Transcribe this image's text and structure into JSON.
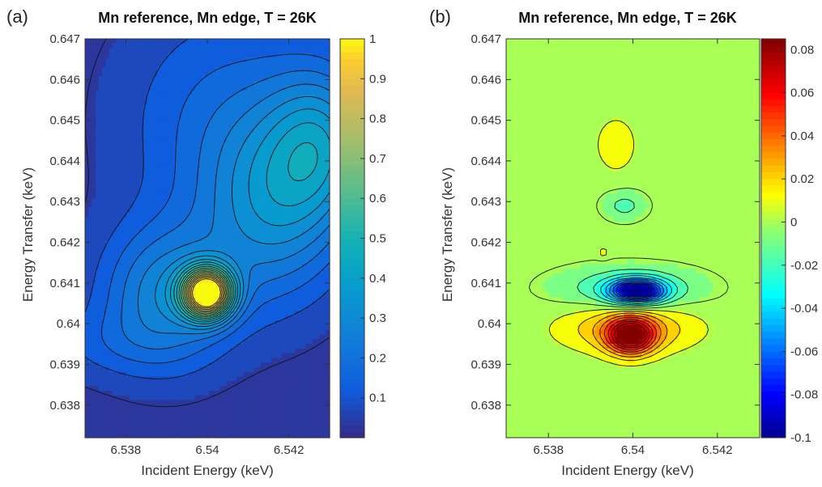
{
  "chart_data": [
    {
      "panel_label": "(a)",
      "type": "heatmap",
      "title": "Mn reference, Mn edge, T = 26K",
      "xlabel": "Incident Energy (keV)",
      "ylabel": "Energy Transfer (keV)",
      "xlim": [
        6.537,
        6.543
      ],
      "ylim": [
        0.6372,
        0.647
      ],
      "x_ticks": [
        "6.538",
        "6.54",
        "6.542"
      ],
      "y_ticks": [
        "0.638",
        "0.639",
        "0.64",
        "0.641",
        "0.642",
        "0.643",
        "0.644",
        "0.645",
        "0.646",
        "0.647"
      ],
      "colormap": "parula",
      "colorbar_range": [
        0,
        1
      ],
      "colorbar_ticks": [
        "0.1",
        "0.2",
        "0.3",
        "0.4",
        "0.5",
        "0.6",
        "0.7",
        "0.8",
        "0.9",
        "1"
      ],
      "background_value": 0.03,
      "features": [
        {
          "x": 6.54,
          "y": 0.64075,
          "amp": 0.98,
          "sx": 0.00042,
          "sy": 0.00042
        },
        {
          "x": 6.539,
          "y": 0.6407,
          "amp": 0.25,
          "sx": 0.0011,
          "sy": 0.0012
        },
        {
          "x": 6.5416,
          "y": 0.6428,
          "amp": 0.24,
          "sx": 0.0012,
          "sy": 0.0016
        },
        {
          "x": 6.5428,
          "y": 0.6444,
          "amp": 0.26,
          "sx": 0.0009,
          "sy": 0.0013
        },
        {
          "x": 6.5405,
          "y": 0.645,
          "amp": 0.13,
          "sx": 0.0018,
          "sy": 0.002
        },
        {
          "x": 6.5375,
          "y": 0.6395,
          "amp": 0.06,
          "sx": 0.0012,
          "sy": 0.0006
        }
      ]
    },
    {
      "panel_label": "(b)",
      "type": "heatmap",
      "title": "Mn reference, Mn edge, T = 26K",
      "xlabel": "Incident Energy (keV)",
      "ylabel": "Energy Transfer (keV)",
      "xlim": [
        6.537,
        6.543
      ],
      "ylim": [
        0.6372,
        0.647
      ],
      "x_ticks": [
        "6.538",
        "6.54",
        "6.542"
      ],
      "y_ticks": [
        "0.638",
        "0.639",
        "0.64",
        "0.641",
        "0.642",
        "0.643",
        "0.644",
        "0.645",
        "0.646",
        "0.647"
      ],
      "colormap": "jet",
      "colorbar_range": [
        -0.1,
        0.085
      ],
      "colorbar_ticks": [
        "0.08",
        "0.06",
        "0.04",
        "0.02",
        "0",
        "-0.02",
        "-0.04",
        "-0.06",
        "-0.08",
        "-0.1"
      ],
      "background_value": 0,
      "features": [
        {
          "x": 6.53995,
          "y": 0.6397,
          "amp": 0.082,
          "sx": 0.00038,
          "sy": 0.0003
        },
        {
          "x": 6.5399,
          "y": 0.6399,
          "amp": 0.03,
          "sx": 0.0011,
          "sy": 0.00042
        },
        {
          "x": 6.5401,
          "y": 0.6408,
          "amp": -0.1,
          "sx": 0.00045,
          "sy": 0.0002
        },
        {
          "x": 6.5399,
          "y": 0.64085,
          "amp": -0.022,
          "sx": 0.0012,
          "sy": 0.00038
        },
        {
          "x": 6.5396,
          "y": 0.6444,
          "amp": 0.016,
          "sx": 0.00032,
          "sy": 0.00045
        },
        {
          "x": 6.5398,
          "y": 0.6429,
          "amp": -0.016,
          "sx": 0.00036,
          "sy": 0.00025
        },
        {
          "x": 6.5393,
          "y": 0.64175,
          "amp": 0.014,
          "sx": 9e-05,
          "sy": 8e-05
        }
      ]
    }
  ]
}
